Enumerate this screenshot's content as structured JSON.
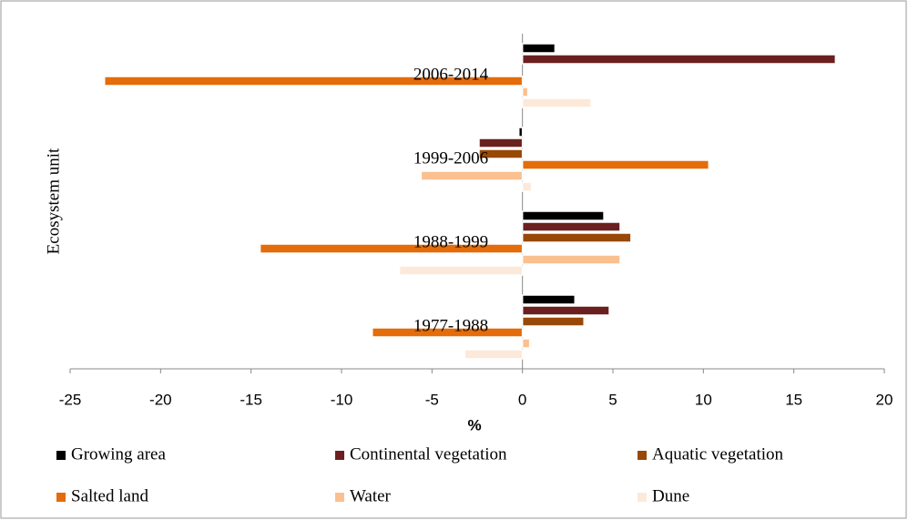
{
  "chart_data": {
    "type": "barh",
    "xlabel": "%",
    "ylabel": "Ecosystem unit",
    "categories": [
      "1977-1988",
      "1988-1999",
      "1999-2006",
      "2006-2014"
    ],
    "series": [
      {
        "name": "Growing area",
        "color": "#000000",
        "values": [
          2.9,
          4.5,
          -0.2,
          1.8
        ]
      },
      {
        "name": "Continental vegetation",
        "color": "#6b2020",
        "values": [
          4.8,
          5.4,
          -2.4,
          17.3
        ]
      },
      {
        "name": "Aquatic vegetation",
        "color": "#984807",
        "values": [
          3.4,
          6.0,
          -2.4,
          0
        ]
      },
      {
        "name": "Salted land",
        "color": "#e46c0a",
        "values": [
          -8.3,
          -14.5,
          10.3,
          -23.1
        ]
      },
      {
        "name": "Water",
        "color": "#fac090",
        "values": [
          0.4,
          5.4,
          -5.6,
          0.3
        ]
      },
      {
        "name": "Dune",
        "color": "#fde9d9",
        "values": [
          -3.2,
          -6.8,
          0.5,
          3.8
        ]
      }
    ],
    "xlim": [
      -25,
      20
    ],
    "xticks": [
      -25,
      -20,
      -15,
      -10,
      -5,
      0,
      5,
      10,
      15,
      20
    ],
    "legend": "bottom"
  }
}
